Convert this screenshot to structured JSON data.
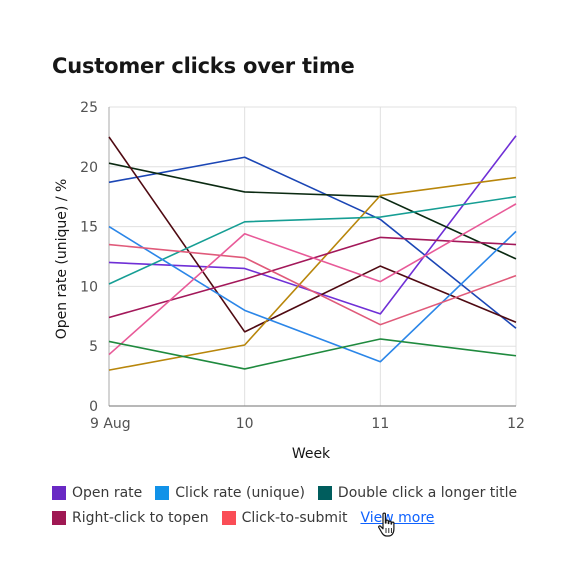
{
  "title": "Customer clicks over time",
  "chart_data": {
    "type": "line",
    "title": "Customer clicks over time",
    "xlabel": "Week",
    "ylabel": "Open rate (unique) / %",
    "x_ticks": [
      "9 Aug",
      "10",
      "11",
      "12"
    ],
    "y_ticks": [
      "0",
      "5",
      "10",
      "15",
      "20",
      "25"
    ],
    "ylim": [
      0,
      25
    ],
    "grid": "horizontal and vertical",
    "series": [
      {
        "color": "#1b46b5",
        "values": [
          18.7,
          20.8,
          15.6,
          6.5
        ]
      },
      {
        "color": "#6f2fd6",
        "values": [
          12.0,
          11.5,
          7.7,
          22.6
        ]
      },
      {
        "color": "#0b2a12",
        "values": [
          20.3,
          17.9,
          17.5,
          12.3
        ]
      },
      {
        "color": "#4f0a12",
        "values": [
          22.5,
          6.2,
          11.7,
          7.0
        ]
      },
      {
        "color": "#b8860b",
        "values": [
          3.0,
          5.1,
          17.6,
          19.1
        ]
      },
      {
        "color": "#169e94",
        "values": [
          10.2,
          15.4,
          15.8,
          17.5
        ]
      },
      {
        "color": "#2b86e8",
        "values": [
          15.0,
          8.0,
          3.7,
          14.6
        ]
      },
      {
        "color": "#a3185a",
        "values": [
          7.4,
          10.6,
          14.1,
          13.5
        ]
      },
      {
        "color": "#e05a7a",
        "values": [
          13.5,
          12.4,
          6.8,
          10.9
        ]
      },
      {
        "color": "#e85a98",
        "values": [
          4.3,
          14.4,
          10.4,
          16.9
        ]
      },
      {
        "color": "#1f8a3e",
        "values": [
          5.4,
          3.1,
          5.6,
          4.2
        ]
      }
    ]
  },
  "legend": [
    {
      "label": "Open rate",
      "color": "#6929c4"
    },
    {
      "label": "Click rate (unique)",
      "color": "#1192e8"
    },
    {
      "label": "Double click a longer title",
      "color": "#005d5d"
    },
    {
      "label": "Right-click to topen",
      "color": "#9f1853"
    },
    {
      "label": "Click-to-submit",
      "color": "#fa4d56"
    }
  ],
  "view_more": "View more"
}
